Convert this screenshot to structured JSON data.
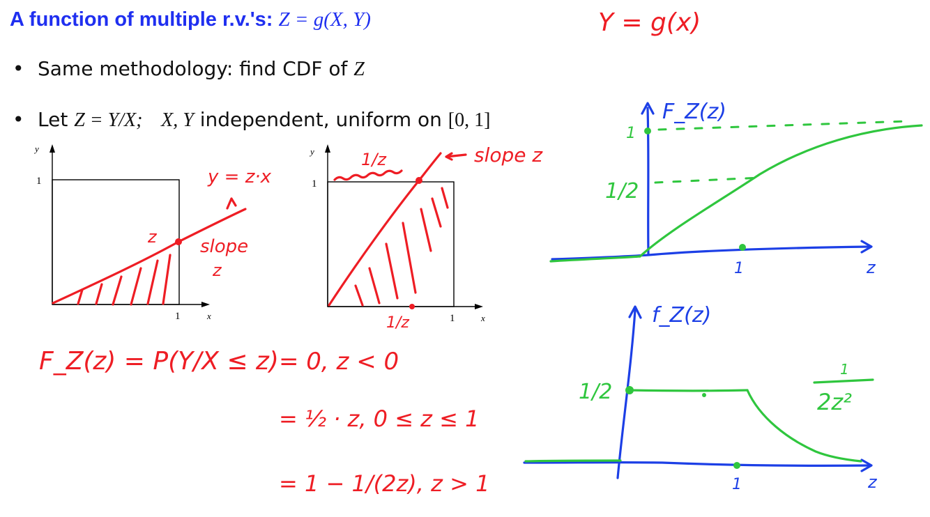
{
  "slide": {
    "title_text": "A function of multiple r.v.'s:",
    "title_math": "Z = g(X, Y)",
    "bullet1_text": "Same methodology: find CDF of ",
    "bullet1_math": "Z",
    "bullet2_pre": "Let ",
    "bullet2_math1": "Z = Y/X;",
    "bullet2_math2": "X, Y",
    "bullet2_post": " independent, uniform on ",
    "bullet2_interval": "[0, 1]"
  },
  "plot_left": {
    "y_label": "y",
    "x_label": "x",
    "y_tick": "1",
    "x_tick": "1"
  },
  "plot_mid": {
    "y_label": "y",
    "x_label": "x",
    "y_tick": "1",
    "x_tick": "1"
  },
  "annotations": {
    "top_right": "Y = g(x)",
    "line_label": "y = z·x",
    "point_label": "z",
    "slope_label": "slope",
    "slope_z": "z",
    "mid_top": "1/z",
    "mid_slope": "slope z",
    "mid_bottom": "1/z",
    "cdf_def": "F_Z(z) = P(Y/X ≤ z)",
    "case1": "= 0,   z < 0",
    "case2": "= ½ · z,   0 ≤ z ≤ 1",
    "case3": "= 1 − 1/(2z),   z > 1",
    "cdf_axis_label": "F_Z(z)",
    "cdf_one": "1",
    "cdf_half": "1/2",
    "cdf_x_one": "1",
    "cdf_x_label": "z",
    "pdf_axis_label": "f_Z(z)",
    "pdf_half": "1/2",
    "pdf_x_one": "1",
    "pdf_x_label": "z",
    "pdf_tail_num": "1",
    "pdf_tail_den": "2z²"
  },
  "colors": {
    "title": "#1f2ff0",
    "red": "#ee1d24",
    "blue": "#1c3fe6",
    "green": "#2fc63e"
  }
}
